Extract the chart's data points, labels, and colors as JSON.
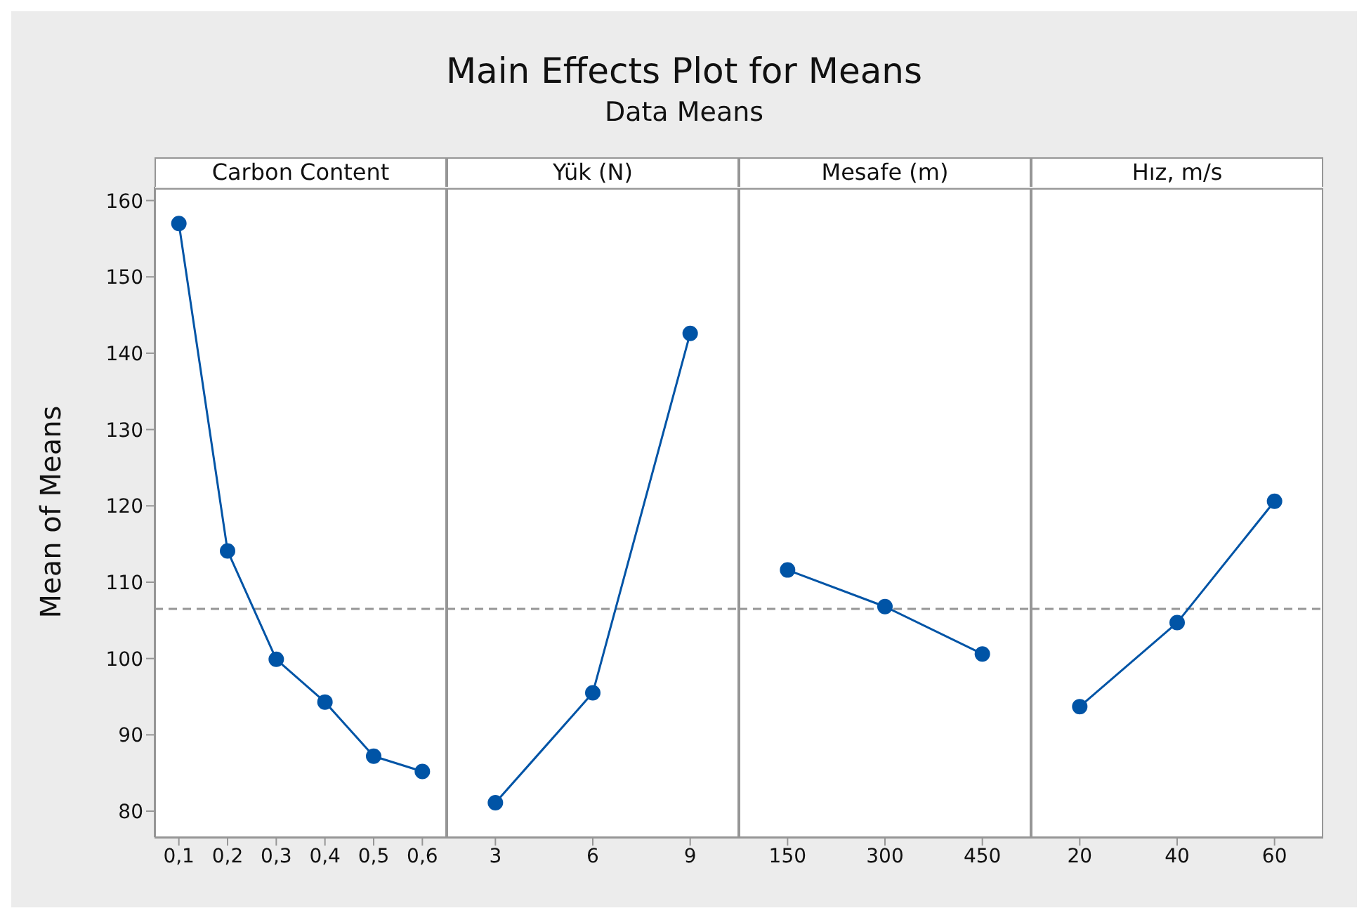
{
  "chart_data": [
    {
      "type": "other",
      "title": "Main Effects Plot for Means",
      "subtitle": "Data Means"
    },
    {
      "type": "line",
      "xlabel": "Carbon Content",
      "ylabel": "Mean of Means",
      "categories": [
        "0,1",
        "0,2",
        "0,3",
        "0,4",
        "0,5",
        "0,6"
      ],
      "series": [
        {
          "color": "#0054a6",
          "values": [
            157.0,
            114.1,
            99.9,
            94.3,
            87.2,
            85.2
          ]
        }
      ],
      "ylim": [
        76.6,
        161.8
      ],
      "yticks": [
        80,
        90,
        100,
        110,
        120,
        130,
        140,
        150,
        160
      ],
      "ref_lines": [
        {
          "axis": "y",
          "value": 106.5,
          "color": "#969696",
          "line_style": "dashed"
        }
      ],
      "marker": "circle"
    },
    {
      "type": "line",
      "xlabel": "Yük (N)",
      "categories": [
        "3",
        "6",
        "9"
      ],
      "series": [
        {
          "color": "#0054a6",
          "values": [
            81.1,
            95.5,
            142.6
          ]
        }
      ],
      "ylim": [
        76.6,
        161.8
      ],
      "yticks": [
        80,
        90,
        100,
        110,
        120,
        130,
        140,
        150,
        160
      ],
      "tick_labels": "x",
      "ref_lines": [
        {
          "axis": "y",
          "value": 106.5,
          "color": "#969696",
          "line_style": "dashed"
        }
      ],
      "marker": "circle"
    },
    {
      "type": "line",
      "xlabel": "Mesafe (m)",
      "categories": [
        "150",
        "300",
        "450"
      ],
      "series": [
        {
          "color": "#0054a6",
          "values": [
            111.6,
            106.8,
            100.6
          ]
        }
      ],
      "ylim": [
        76.6,
        161.8
      ],
      "yticks": [
        80,
        90,
        100,
        110,
        120,
        130,
        140,
        150,
        160
      ],
      "tick_labels": "x",
      "ref_lines": [
        {
          "axis": "y",
          "value": 106.5,
          "color": "#969696",
          "line_style": "dashed"
        }
      ],
      "marker": "circle"
    },
    {
      "type": "line",
      "xlabel": "Hız, m/s",
      "categories": [
        "20",
        "40",
        "60"
      ],
      "series": [
        {
          "color": "#0054a6",
          "values": [
            93.7,
            104.7,
            120.6
          ]
        }
      ],
      "ylim": [
        76.6,
        161.8
      ],
      "yticks": [
        80,
        90,
        100,
        110,
        120,
        130,
        140,
        150,
        160
      ],
      "tick_labels": "x",
      "ref_lines": [
        {
          "axis": "y",
          "value": 106.5,
          "color": "#969696",
          "line_style": "dashed"
        }
      ],
      "marker": "circle"
    }
  ]
}
